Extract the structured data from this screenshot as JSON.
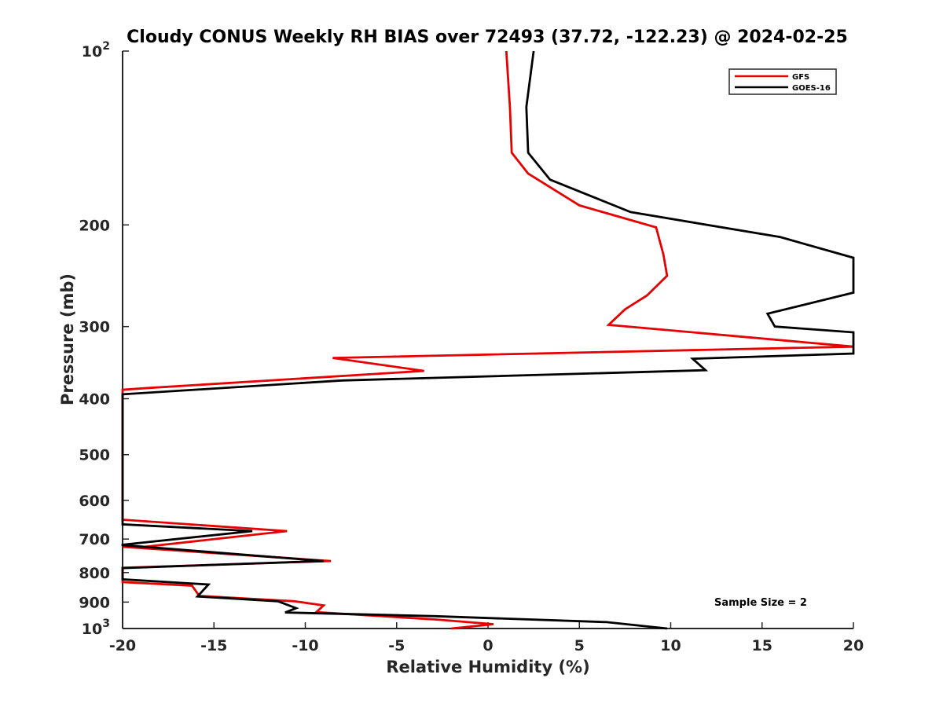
{
  "chart_data": {
    "type": "line",
    "title": "Cloudy CONUS Weekly RH BIAS over 72493 (37.72, -122.23) @ 2024-02-25",
    "xlabel": "Relative Humidity (%)",
    "ylabel": "Pressure (mb)",
    "xlim": [
      -20,
      20
    ],
    "ylim": [
      100,
      1000
    ],
    "y_scale": "log",
    "y_reversed": true,
    "grid": false,
    "legend_position": "top-right",
    "x_ticks": [
      -20,
      -15,
      -10,
      -5,
      0,
      5,
      10,
      15,
      20
    ],
    "x_tick_labels": [
      "-20",
      "-15",
      "-10",
      "-5",
      "0",
      "5",
      "10",
      "15",
      "20"
    ],
    "y_ticks": [
      100,
      200,
      300,
      400,
      500,
      600,
      700,
      800,
      900,
      1000
    ],
    "y_tick_labels": [
      {
        "base": "10",
        "exp": "2"
      },
      {
        "base": "200",
        "exp": ""
      },
      {
        "base": "300",
        "exp": ""
      },
      {
        "base": "400",
        "exp": ""
      },
      {
        "base": "500",
        "exp": ""
      },
      {
        "base": "600",
        "exp": ""
      },
      {
        "base": "700",
        "exp": ""
      },
      {
        "base": "800",
        "exp": ""
      },
      {
        "base": "900",
        "exp": ""
      },
      {
        "base": "10",
        "exp": "3"
      }
    ],
    "annotation": "Sample Size = 2",
    "series": [
      {
        "name": "GFS",
        "color": "#e60000",
        "points": [
          [
            1.0,
            100
          ],
          [
            1.2,
            125
          ],
          [
            1.3,
            150
          ],
          [
            2.2,
            163
          ],
          [
            5.0,
            185
          ],
          [
            9.2,
            202
          ],
          [
            9.6,
            225
          ],
          [
            9.8,
            245
          ],
          [
            8.7,
            265
          ],
          [
            7.5,
            280
          ],
          [
            6.6,
            298
          ],
          [
            20.0,
            325
          ],
          [
            -8.5,
            340
          ],
          [
            -3.5,
            358
          ],
          [
            -18.5,
            383
          ],
          [
            -20.0,
            386
          ],
          [
            -20.0,
            648
          ],
          [
            -11.0,
            678
          ],
          [
            -18.8,
            722
          ],
          [
            -20.0,
            722
          ],
          [
            -8.6,
            764
          ],
          [
            -20.0,
            785
          ],
          [
            -20.0,
            831
          ],
          [
            -16.2,
            843
          ],
          [
            -15.8,
            878
          ],
          [
            -10.6,
            897
          ],
          [
            -9.0,
            912
          ],
          [
            -9.4,
            937
          ],
          [
            -2.8,
            965
          ],
          [
            0.3,
            983
          ],
          [
            -2.0,
            1000
          ]
        ]
      },
      {
        "name": "GOES-16",
        "color": "#000000",
        "points": [
          [
            2.5,
            100
          ],
          [
            2.1,
            125
          ],
          [
            2.2,
            150
          ],
          [
            3.4,
            167
          ],
          [
            7.8,
            190
          ],
          [
            16.0,
            210
          ],
          [
            20.0,
            228
          ],
          [
            20.0,
            262
          ],
          [
            15.3,
            285
          ],
          [
            15.7,
            300
          ],
          [
            20.0,
            307
          ],
          [
            20.0,
            334
          ],
          [
            11.2,
            341
          ],
          [
            11.9,
            357
          ],
          [
            -8.0,
            372
          ],
          [
            -20.0,
            393
          ],
          [
            -20.0,
            660
          ],
          [
            -12.9,
            678
          ],
          [
            -20.0,
            716
          ],
          [
            -20.0,
            717
          ],
          [
            -9.0,
            764
          ],
          [
            -20.0,
            786
          ],
          [
            -20.0,
            822
          ],
          [
            -15.3,
            839
          ],
          [
            -15.9,
            880
          ],
          [
            -11.5,
            897
          ],
          [
            -10.5,
            922
          ],
          [
            -11.1,
            938
          ],
          [
            -2.9,
            952
          ],
          [
            6.5,
            975
          ],
          [
            9.8,
            1000
          ]
        ]
      }
    ]
  }
}
